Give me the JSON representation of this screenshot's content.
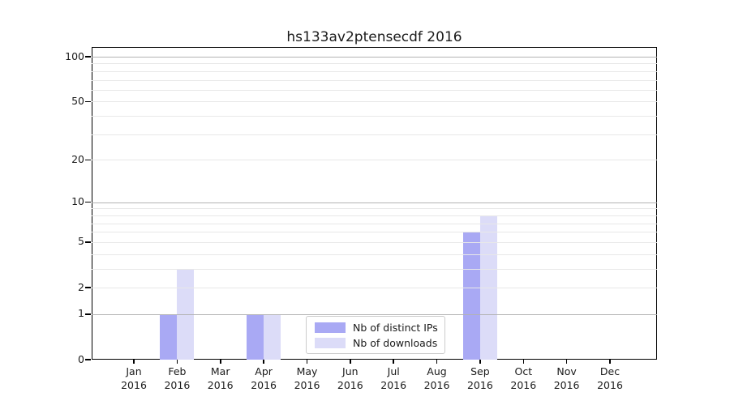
{
  "chart_data": {
    "type": "bar",
    "title": "hs133av2ptensecdf 2016",
    "categories": [
      "Jan 2016",
      "Feb 2016",
      "Mar 2016",
      "Apr 2016",
      "May 2016",
      "Jun 2016",
      "Jul 2016",
      "Aug 2016",
      "Sep 2016",
      "Oct 2016",
      "Nov 2016",
      "Dec 2016"
    ],
    "category_lines": [
      {
        "month": "Jan",
        "year": "2016"
      },
      {
        "month": "Feb",
        "year": "2016"
      },
      {
        "month": "Mar",
        "year": "2016"
      },
      {
        "month": "Apr",
        "year": "2016"
      },
      {
        "month": "May",
        "year": "2016"
      },
      {
        "month": "Jun",
        "year": "2016"
      },
      {
        "month": "Jul",
        "year": "2016"
      },
      {
        "month": "Aug",
        "year": "2016"
      },
      {
        "month": "Sep",
        "year": "2016"
      },
      {
        "month": "Oct",
        "year": "2016"
      },
      {
        "month": "Nov",
        "year": "2016"
      },
      {
        "month": "Dec",
        "year": "2016"
      }
    ],
    "series": [
      {
        "name": "Nb of distinct IPs",
        "color": "#a9a9f4",
        "values": [
          0,
          1,
          0,
          1,
          0,
          0,
          0,
          0,
          6,
          0,
          0,
          0
        ]
      },
      {
        "name": "Nb of downloads",
        "color": "#dcdcf8",
        "values": [
          0,
          3,
          0,
          1,
          0,
          0,
          0,
          0,
          8,
          0,
          0,
          0
        ]
      }
    ],
    "ylabel": "",
    "xlabel": "",
    "yscale": "log1p",
    "ytick_labels": [
      "0",
      "1",
      "2",
      "5",
      "10",
      "20",
      "50",
      "100"
    ],
    "yticks": [
      0,
      1,
      2,
      5,
      10,
      20,
      50,
      100
    ],
    "minor_gridline_values": [
      2,
      3,
      4,
      5,
      6,
      7,
      8,
      9,
      20,
      30,
      40,
      50,
      60,
      70,
      80,
      90
    ],
    "major_gridline_values": [
      1,
      10,
      100
    ],
    "ylim": [
      0,
      117
    ],
    "grid": "horizontal",
    "legend_position": "inside-bottom-center",
    "colors": {
      "background": "#ffffff",
      "spine": "#000000",
      "major_grid": "#b2b2b2",
      "minor_grid": "#e8e8e8",
      "text": "#1a1a1a",
      "legend_border": "#cccccc"
    }
  }
}
